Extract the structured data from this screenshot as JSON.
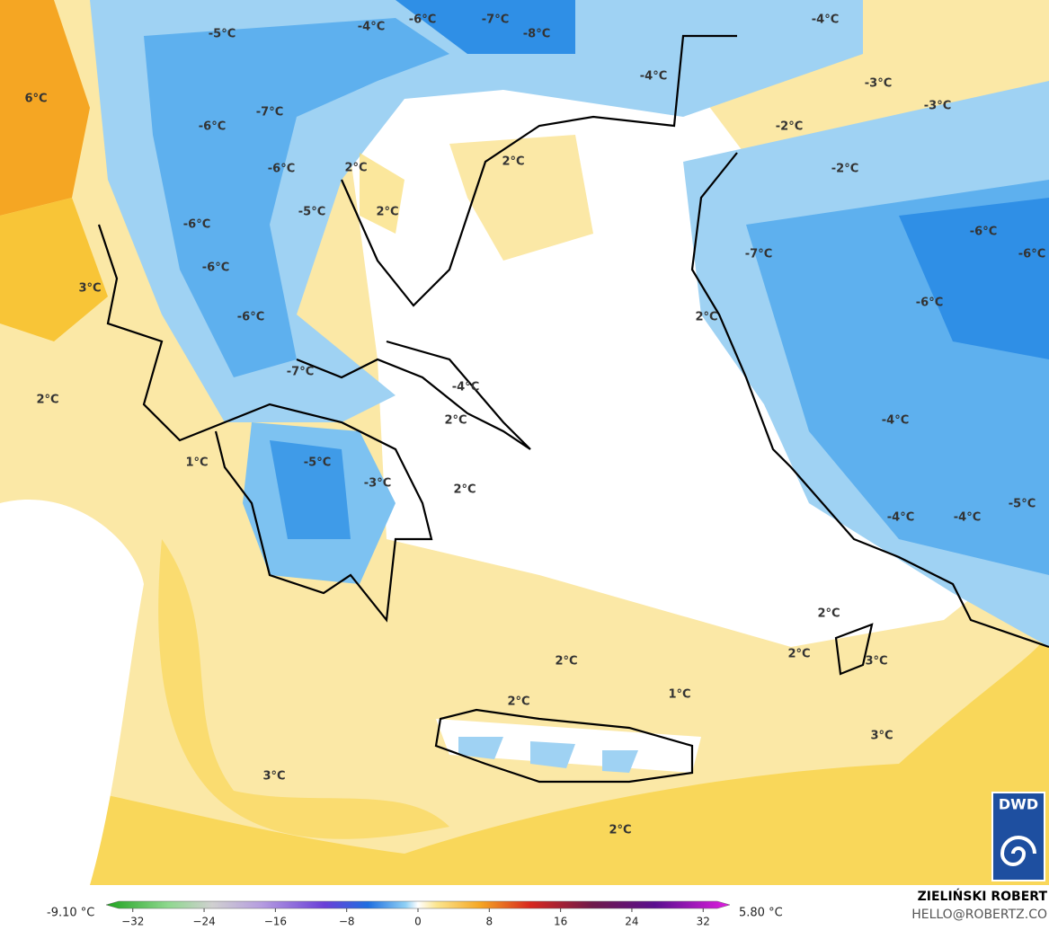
{
  "map": {
    "labels": [
      "-6°C",
      "-7°C",
      "-8°C",
      "-4°C",
      "-5°C",
      "-4°C",
      "6°C",
      "-4°C",
      "-3°C",
      "-3°C",
      "-7°C",
      "-6°C",
      "-2°C",
      "2°C",
      "2°C",
      "-6°C",
      "-2°C",
      "2°C",
      "-5°C",
      "-6°C",
      "-6°C",
      "-6°C",
      "-7°C",
      "-6°C",
      "3°C",
      "-6°C",
      "2°C",
      "-6°C",
      "-7°C",
      "-4°C",
      "2°C",
      "-4°C",
      "2°C",
      "-5°C",
      "1°C",
      "-3°C",
      "2°C",
      "-5°C",
      "-4°C",
      "-4°C",
      "2°C",
      "2°C",
      "3°C",
      "2°C",
      "1°C",
      "2°C",
      "3°C",
      "3°C",
      "2°C"
    ]
  },
  "colorbar": {
    "min_label": "-9.10 °C",
    "max_label": "5.80 °C",
    "lim": [
      -35,
      35
    ],
    "ticks": [
      -32,
      -24,
      -16,
      -8,
      0,
      8,
      16,
      24,
      32
    ]
  },
  "credit": {
    "name": "ZIELIŃSKI ROBERT",
    "email": "HELLO@ROBERTZ.CO"
  },
  "logo": "DWD"
}
